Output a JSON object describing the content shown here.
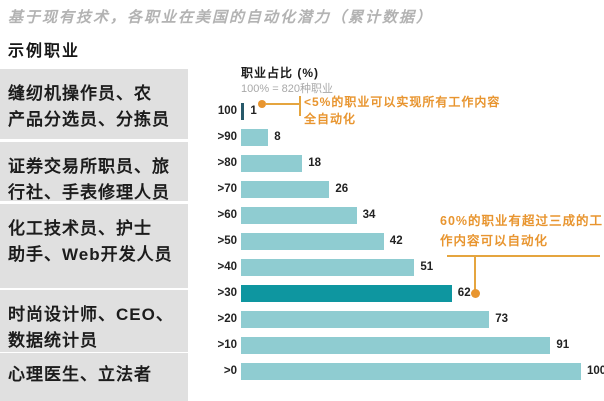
{
  "page_title": "基于现有技术，各职业在美国的自动化潜力（累计数据）",
  "sidebar": {
    "heading": "示例职业",
    "items": [
      "缝纫机操作员、农\n产品分选员、分拣员",
      "证券交易所职员、旅\n行社、手表修理人员",
      "化工技术员、护士\n助手、Web开发人员",
      "时尚设计师、CEO、\n数据统计员",
      "心理医生、立法者"
    ]
  },
  "chart": {
    "axis_title": "职业占比 (%)",
    "axis_subtitle": "100% = 820种职业"
  },
  "chart_data": {
    "type": "bar",
    "orientation": "horizontal",
    "title": "基于现有技术，各职业在美国的自动化潜力（累计数据）",
    "xlabel": "职业占比 (%)",
    "note": "100% = 820种职业",
    "categories": [
      "100",
      ">90",
      ">80",
      ">70",
      ">60",
      ">50",
      ">40",
      ">30",
      ">20",
      ">10",
      ">0"
    ],
    "values": [
      1,
      8,
      18,
      26,
      34,
      42,
      51,
      62,
      73,
      91,
      100
    ],
    "xlim": [
      0,
      100
    ],
    "grid": false,
    "legend": "none",
    "highlighted_category": ">30",
    "colors": {
      "bar": "#8fccd1",
      "highlight": "#0e96a0",
      "first_bar": "#27596a",
      "annotation": "#e8952f",
      "sidebar_box": "#e0e0e0"
    },
    "annotations": [
      {
        "text": "<5%的职业可以实现所有工作内容\n全自动化",
        "target_category": "100",
        "target_value": 1
      },
      {
        "text": "60%的职业有超过三成的工\n作内容可以自动化",
        "target_category": ">30",
        "target_value": 62
      }
    ]
  }
}
